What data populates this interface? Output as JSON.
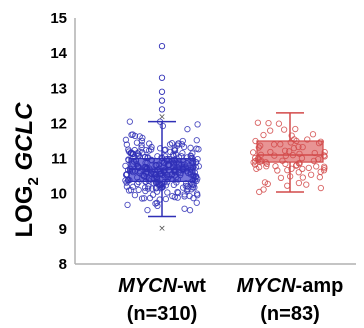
{
  "chart_data": {
    "type": "box",
    "ylabel": {
      "prefix": "LOG",
      "subscript": "2",
      "gene": "GCLC"
    },
    "ylim": [
      8,
      15
    ],
    "yticks": [
      8,
      9,
      10,
      11,
      12,
      13,
      14,
      15
    ],
    "grid": false,
    "legend": "none",
    "categories": [
      {
        "gene": "MYCN",
        "suffix": "-wt",
        "n_label": "(n=310)"
      },
      {
        "gene": "MYCN",
        "suffix": "-amp",
        "n_label": "(n=83)"
      }
    ],
    "series": [
      {
        "color": "#2f2fb6",
        "fill": "#4a4ad0",
        "n": 310,
        "q1": 10.35,
        "median": 10.7,
        "q3": 11.0,
        "whisker_low": 9.35,
        "whisker_high": 12.05,
        "mean": 12.2,
        "min_marker": 9.03,
        "outliers": [
          14.2,
          13.3,
          12.9,
          12.65,
          12.4
        ]
      },
      {
        "color": "#d24a4a",
        "fill": "#e07070",
        "n": 83,
        "q1": 10.9,
        "median": 11.1,
        "q3": 11.5,
        "whisker_low": 10.05,
        "whisker_high": 12.3,
        "outliers": []
      }
    ]
  }
}
